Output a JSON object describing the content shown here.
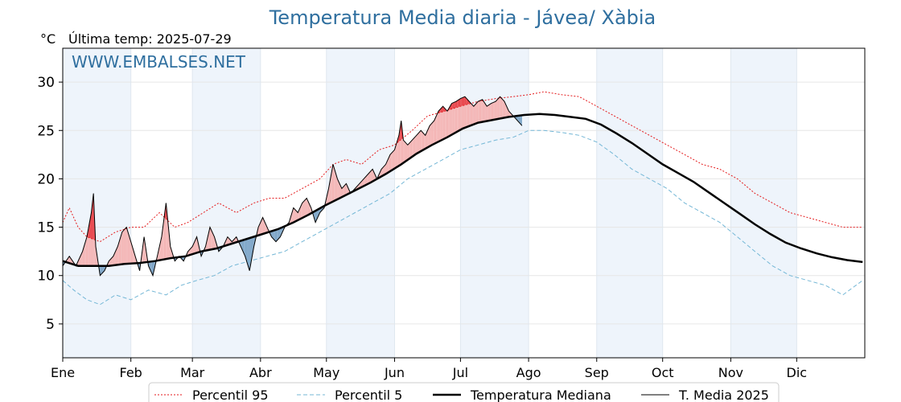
{
  "header": {
    "title": "Temperatura Media diaria - Jávea/ Xàbia",
    "unit": "°C",
    "last_temp_label": "Última temp: 2025-07-29"
  },
  "watermark": "WWW.EMBALSES.NET",
  "colors": {
    "title": "#2f6f9f",
    "p95": "#e41a1c",
    "p5": "#74b7d6",
    "median": "#000000",
    "current": "#000000",
    "above_fill": "#f4b6b6",
    "above_fill_strong": "#e8444a",
    "below_fill": "#7ea6c8",
    "month_band": "#eef4fb"
  },
  "chart_data": {
    "type": "line",
    "title": "Temperatura Media diaria - Jávea/ Xàbia",
    "ylabel": "°C",
    "xlabel": "",
    "ylim": [
      1.5,
      33.5
    ],
    "yticks": [
      5,
      10,
      15,
      20,
      25,
      30
    ],
    "months": [
      "Ene",
      "Feb",
      "Mar",
      "Abr",
      "May",
      "Jun",
      "Jul",
      "Ago",
      "Sep",
      "Oct",
      "Nov",
      "Dic"
    ],
    "month_start_days": [
      1,
      32,
      60,
      91,
      121,
      152,
      182,
      213,
      244,
      274,
      305,
      335
    ],
    "grid": true,
    "legend_position": "bottom",
    "series": [
      {
        "name": "Percentil 95",
        "style": "dotted-red",
        "points": [
          [
            1,
            15.5
          ],
          [
            4,
            17
          ],
          [
            8,
            15
          ],
          [
            12,
            14
          ],
          [
            18,
            13.5
          ],
          [
            25,
            14.5
          ],
          [
            32,
            15
          ],
          [
            38,
            15
          ],
          [
            45,
            16.5
          ],
          [
            52,
            15
          ],
          [
            58,
            15.5
          ],
          [
            65,
            16.5
          ],
          [
            72,
            17.5
          ],
          [
            80,
            16.5
          ],
          [
            88,
            17.5
          ],
          [
            95,
            18
          ],
          [
            102,
            18
          ],
          [
            110,
            19
          ],
          [
            118,
            20
          ],
          [
            124,
            21.5
          ],
          [
            130,
            22
          ],
          [
            137,
            21.5
          ],
          [
            145,
            23
          ],
          [
            152,
            23.5
          ],
          [
            160,
            25
          ],
          [
            167,
            26.5
          ],
          [
            175,
            27
          ],
          [
            182,
            27.5
          ],
          [
            190,
            28
          ],
          [
            198,
            28.3
          ],
          [
            206,
            28.5
          ],
          [
            213,
            28.7
          ],
          [
            220,
            29
          ],
          [
            228,
            28.7
          ],
          [
            236,
            28.5
          ],
          [
            244,
            27.5
          ],
          [
            252,
            26.5
          ],
          [
            260,
            25.5
          ],
          [
            268,
            24.5
          ],
          [
            276,
            23.5
          ],
          [
            284,
            22.5
          ],
          [
            292,
            21.5
          ],
          [
            300,
            21
          ],
          [
            308,
            20
          ],
          [
            316,
            18.5
          ],
          [
            324,
            17.5
          ],
          [
            332,
            16.5
          ],
          [
            340,
            16
          ],
          [
            348,
            15.5
          ],
          [
            356,
            15
          ],
          [
            365,
            15
          ]
        ]
      },
      {
        "name": "Percentil 5",
        "style": "dashed-lightblue",
        "points": [
          [
            1,
            9.5
          ],
          [
            6,
            8.5
          ],
          [
            12,
            7.5
          ],
          [
            18,
            7
          ],
          [
            25,
            8
          ],
          [
            32,
            7.5
          ],
          [
            40,
            8.5
          ],
          [
            48,
            8
          ],
          [
            55,
            9
          ],
          [
            62,
            9.5
          ],
          [
            70,
            10
          ],
          [
            78,
            11
          ],
          [
            86,
            11.5
          ],
          [
            94,
            12
          ],
          [
            102,
            12.5
          ],
          [
            110,
            13.5
          ],
          [
            118,
            14.5
          ],
          [
            126,
            15.5
          ],
          [
            134,
            16.5
          ],
          [
            142,
            17.5
          ],
          [
            150,
            18.5
          ],
          [
            158,
            20
          ],
          [
            166,
            21
          ],
          [
            174,
            22
          ],
          [
            182,
            23
          ],
          [
            190,
            23.5
          ],
          [
            198,
            24
          ],
          [
            206,
            24.3
          ],
          [
            213,
            25
          ],
          [
            220,
            25
          ],
          [
            228,
            24.8
          ],
          [
            236,
            24.5
          ],
          [
            244,
            23.8
          ],
          [
            252,
            22.5
          ],
          [
            260,
            21
          ],
          [
            268,
            20
          ],
          [
            276,
            19
          ],
          [
            284,
            17.5
          ],
          [
            292,
            16.5
          ],
          [
            300,
            15.5
          ],
          [
            308,
            14
          ],
          [
            316,
            12.5
          ],
          [
            324,
            11
          ],
          [
            332,
            10
          ],
          [
            340,
            9.5
          ],
          [
            348,
            9
          ],
          [
            356,
            8
          ],
          [
            365,
            9.5
          ]
        ]
      },
      {
        "name": "Temperatura Mediana",
        "style": "thick-black",
        "points": [
          [
            1,
            11.5
          ],
          [
            8,
            11
          ],
          [
            15,
            11
          ],
          [
            22,
            11
          ],
          [
            29,
            11.2
          ],
          [
            36,
            11.3
          ],
          [
            43,
            11.5
          ],
          [
            50,
            11.8
          ],
          [
            57,
            12
          ],
          [
            64,
            12.5
          ],
          [
            71,
            12.8
          ],
          [
            78,
            13.3
          ],
          [
            85,
            13.8
          ],
          [
            92,
            14.3
          ],
          [
            99,
            14.8
          ],
          [
            106,
            15.5
          ],
          [
            113,
            16.3
          ],
          [
            120,
            17.2
          ],
          [
            127,
            18
          ],
          [
            134,
            18.8
          ],
          [
            141,
            19.6
          ],
          [
            148,
            20.5
          ],
          [
            155,
            21.5
          ],
          [
            162,
            22.6
          ],
          [
            169,
            23.5
          ],
          [
            176,
            24.3
          ],
          [
            183,
            25.2
          ],
          [
            190,
            25.8
          ],
          [
            197,
            26.1
          ],
          [
            204,
            26.4
          ],
          [
            211,
            26.6
          ],
          [
            218,
            26.7
          ],
          [
            225,
            26.6
          ],
          [
            232,
            26.4
          ],
          [
            239,
            26.2
          ],
          [
            246,
            25.6
          ],
          [
            253,
            24.7
          ],
          [
            260,
            23.7
          ],
          [
            267,
            22.6
          ],
          [
            274,
            21.5
          ],
          [
            281,
            20.6
          ],
          [
            288,
            19.7
          ],
          [
            295,
            18.6
          ],
          [
            302,
            17.5
          ],
          [
            309,
            16.4
          ],
          [
            316,
            15.3
          ],
          [
            323,
            14.3
          ],
          [
            330,
            13.4
          ],
          [
            337,
            12.8
          ],
          [
            344,
            12.3
          ],
          [
            351,
            11.9
          ],
          [
            358,
            11.6
          ],
          [
            365,
            11.4
          ]
        ]
      },
      {
        "name": "T. Media 2025",
        "style": "thin-black",
        "points": [
          [
            1,
            11
          ],
          [
            4,
            12
          ],
          [
            7,
            11
          ],
          [
            10,
            12.5
          ],
          [
            12,
            14
          ],
          [
            14,
            16.5
          ],
          [
            15,
            18.5
          ],
          [
            16,
            13
          ],
          [
            18,
            10
          ],
          [
            20,
            10.5
          ],
          [
            22,
            11.5
          ],
          [
            24,
            12
          ],
          [
            26,
            13
          ],
          [
            28,
            14.5
          ],
          [
            30,
            15
          ],
          [
            32,
            13.5
          ],
          [
            34,
            12
          ],
          [
            36,
            10.5
          ],
          [
            38,
            14
          ],
          [
            40,
            11
          ],
          [
            42,
            10
          ],
          [
            44,
            12
          ],
          [
            46,
            14
          ],
          [
            48,
            17.5
          ],
          [
            50,
            13
          ],
          [
            52,
            11.5
          ],
          [
            54,
            12
          ],
          [
            56,
            11.5
          ],
          [
            58,
            12.5
          ],
          [
            60,
            13
          ],
          [
            62,
            14
          ],
          [
            64,
            12
          ],
          [
            66,
            13
          ],
          [
            68,
            15
          ],
          [
            70,
            14
          ],
          [
            72,
            12.5
          ],
          [
            74,
            13
          ],
          [
            76,
            14
          ],
          [
            78,
            13.5
          ],
          [
            80,
            14
          ],
          [
            82,
            13
          ],
          [
            84,
            12
          ],
          [
            86,
            10.5
          ],
          [
            88,
            13
          ],
          [
            90,
            15
          ],
          [
            92,
            16
          ],
          [
            94,
            15
          ],
          [
            96,
            14
          ],
          [
            98,
            13.5
          ],
          [
            100,
            14
          ],
          [
            102,
            15
          ],
          [
            104,
            15.5
          ],
          [
            106,
            17
          ],
          [
            108,
            16.5
          ],
          [
            110,
            17.5
          ],
          [
            112,
            18
          ],
          [
            114,
            17
          ],
          [
            116,
            15.5
          ],
          [
            118,
            16.5
          ],
          [
            120,
            17
          ],
          [
            122,
            19
          ],
          [
            124,
            21.5
          ],
          [
            126,
            20
          ],
          [
            128,
            19
          ],
          [
            130,
            19.5
          ],
          [
            132,
            18.5
          ],
          [
            134,
            19
          ],
          [
            136,
            19.5
          ],
          [
            138,
            20
          ],
          [
            140,
            20.5
          ],
          [
            142,
            21
          ],
          [
            144,
            20
          ],
          [
            146,
            21
          ],
          [
            148,
            21.5
          ],
          [
            150,
            22.5
          ],
          [
            152,
            23
          ],
          [
            154,
            24.5
          ],
          [
            155,
            26
          ],
          [
            156,
            24
          ],
          [
            158,
            23.5
          ],
          [
            160,
            24
          ],
          [
            162,
            24.5
          ],
          [
            164,
            25
          ],
          [
            166,
            24.5
          ],
          [
            168,
            25.5
          ],
          [
            170,
            26
          ],
          [
            172,
            27
          ],
          [
            174,
            27.5
          ],
          [
            176,
            27
          ],
          [
            178,
            27.8
          ],
          [
            180,
            28
          ],
          [
            182,
            28.3
          ],
          [
            184,
            28.5
          ],
          [
            186,
            28
          ],
          [
            188,
            27.5
          ],
          [
            190,
            28
          ],
          [
            192,
            28.2
          ],
          [
            194,
            27.5
          ],
          [
            196,
            27.8
          ],
          [
            198,
            28
          ],
          [
            200,
            28.5
          ],
          [
            202,
            28
          ],
          [
            204,
            27
          ],
          [
            206,
            26.5
          ],
          [
            208,
            26
          ],
          [
            210,
            25.5
          ]
        ]
      }
    ]
  },
  "legend": {
    "items": [
      {
        "label": "Percentil 95"
      },
      {
        "label": "Percentil 5"
      },
      {
        "label": "Temperatura Mediana"
      },
      {
        "label": "T. Media 2025"
      }
    ]
  }
}
